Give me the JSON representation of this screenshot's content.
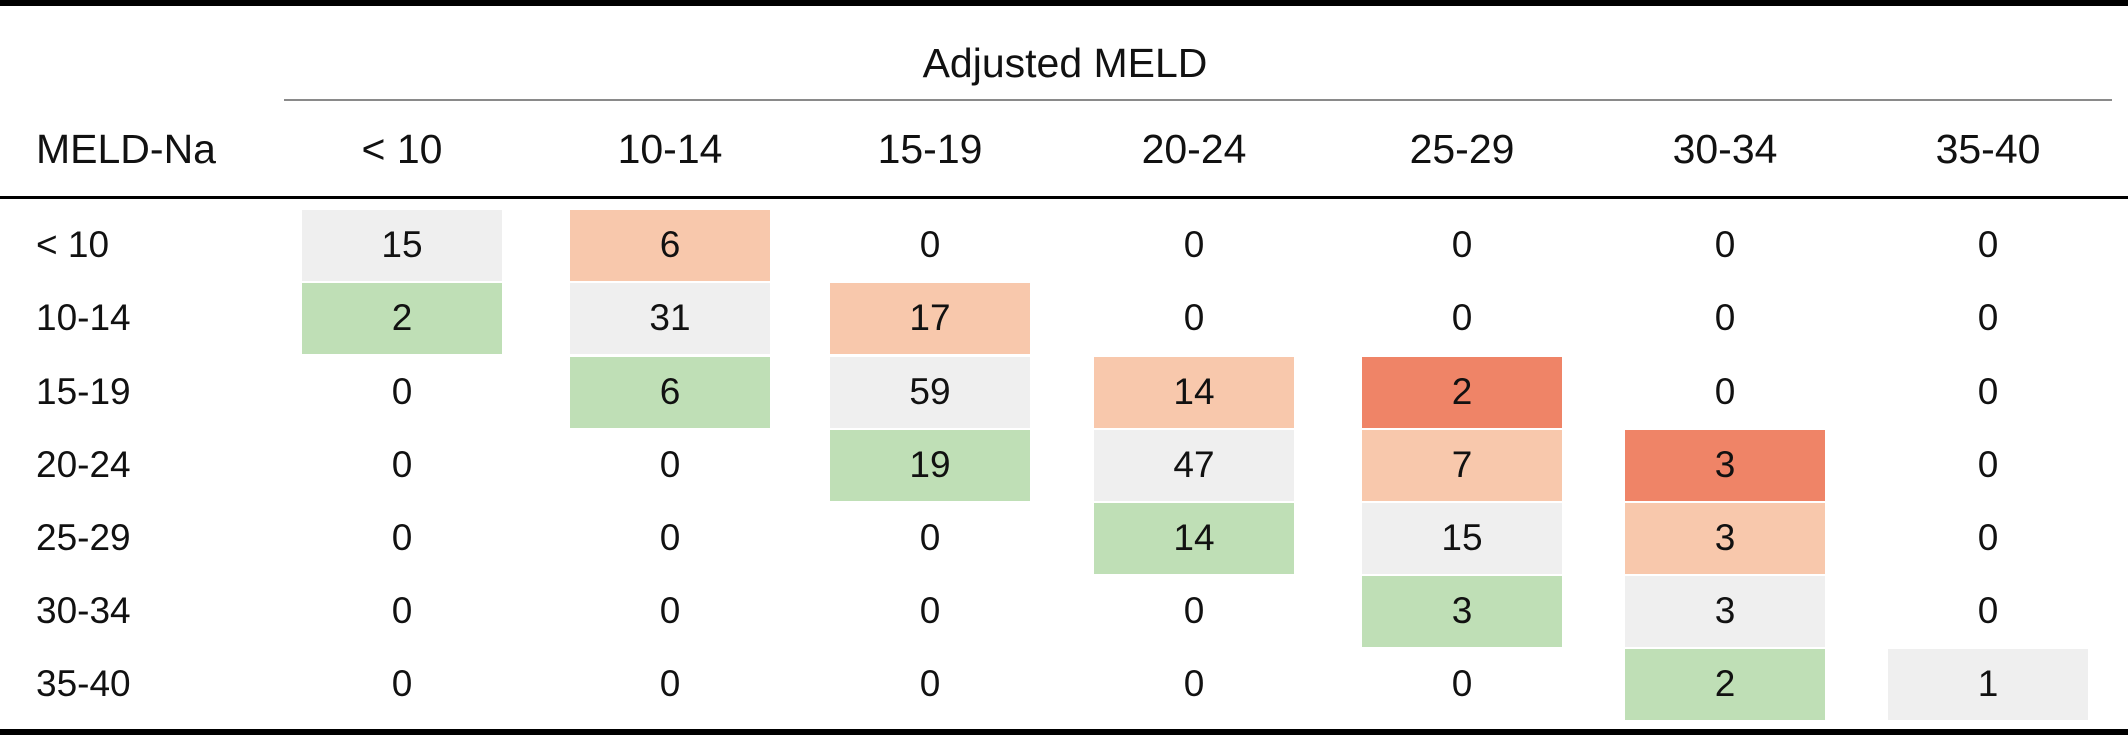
{
  "table": {
    "column_group_title": "Adjusted MELD",
    "row_header_title": "MELD-Na",
    "columns": [
      "< 10",
      "10-14",
      "15-19",
      "20-24",
      "25-29",
      "30-34",
      "35-40"
    ],
    "rows": [
      "< 10",
      "10-14",
      "15-19",
      "20-24",
      "25-29",
      "30-34",
      "35-40"
    ]
  },
  "colors": {
    "same_category": "#efefef",
    "one_up": "#f8c8ac",
    "two_up": "#ef8467",
    "one_down": "#bfdfb6"
  },
  "chart_data": {
    "type": "heatmap",
    "title": "",
    "xlabel": "Adjusted MELD",
    "ylabel": "MELD-Na",
    "x": [
      "< 10",
      "10-14",
      "15-19",
      "20-24",
      "25-29",
      "30-34",
      "35-40"
    ],
    "y": [
      "< 10",
      "10-14",
      "15-19",
      "20-24",
      "25-29",
      "30-34",
      "35-40"
    ],
    "values": [
      [
        15,
        6,
        0,
        0,
        0,
        0,
        0
      ],
      [
        2,
        31,
        17,
        0,
        0,
        0,
        0
      ],
      [
        0,
        6,
        59,
        14,
        2,
        0,
        0
      ],
      [
        0,
        0,
        19,
        47,
        7,
        3,
        0
      ],
      [
        0,
        0,
        0,
        14,
        15,
        3,
        0
      ],
      [
        0,
        0,
        0,
        0,
        3,
        3,
        0
      ],
      [
        0,
        0,
        0,
        0,
        0,
        2,
        1
      ]
    ]
  }
}
